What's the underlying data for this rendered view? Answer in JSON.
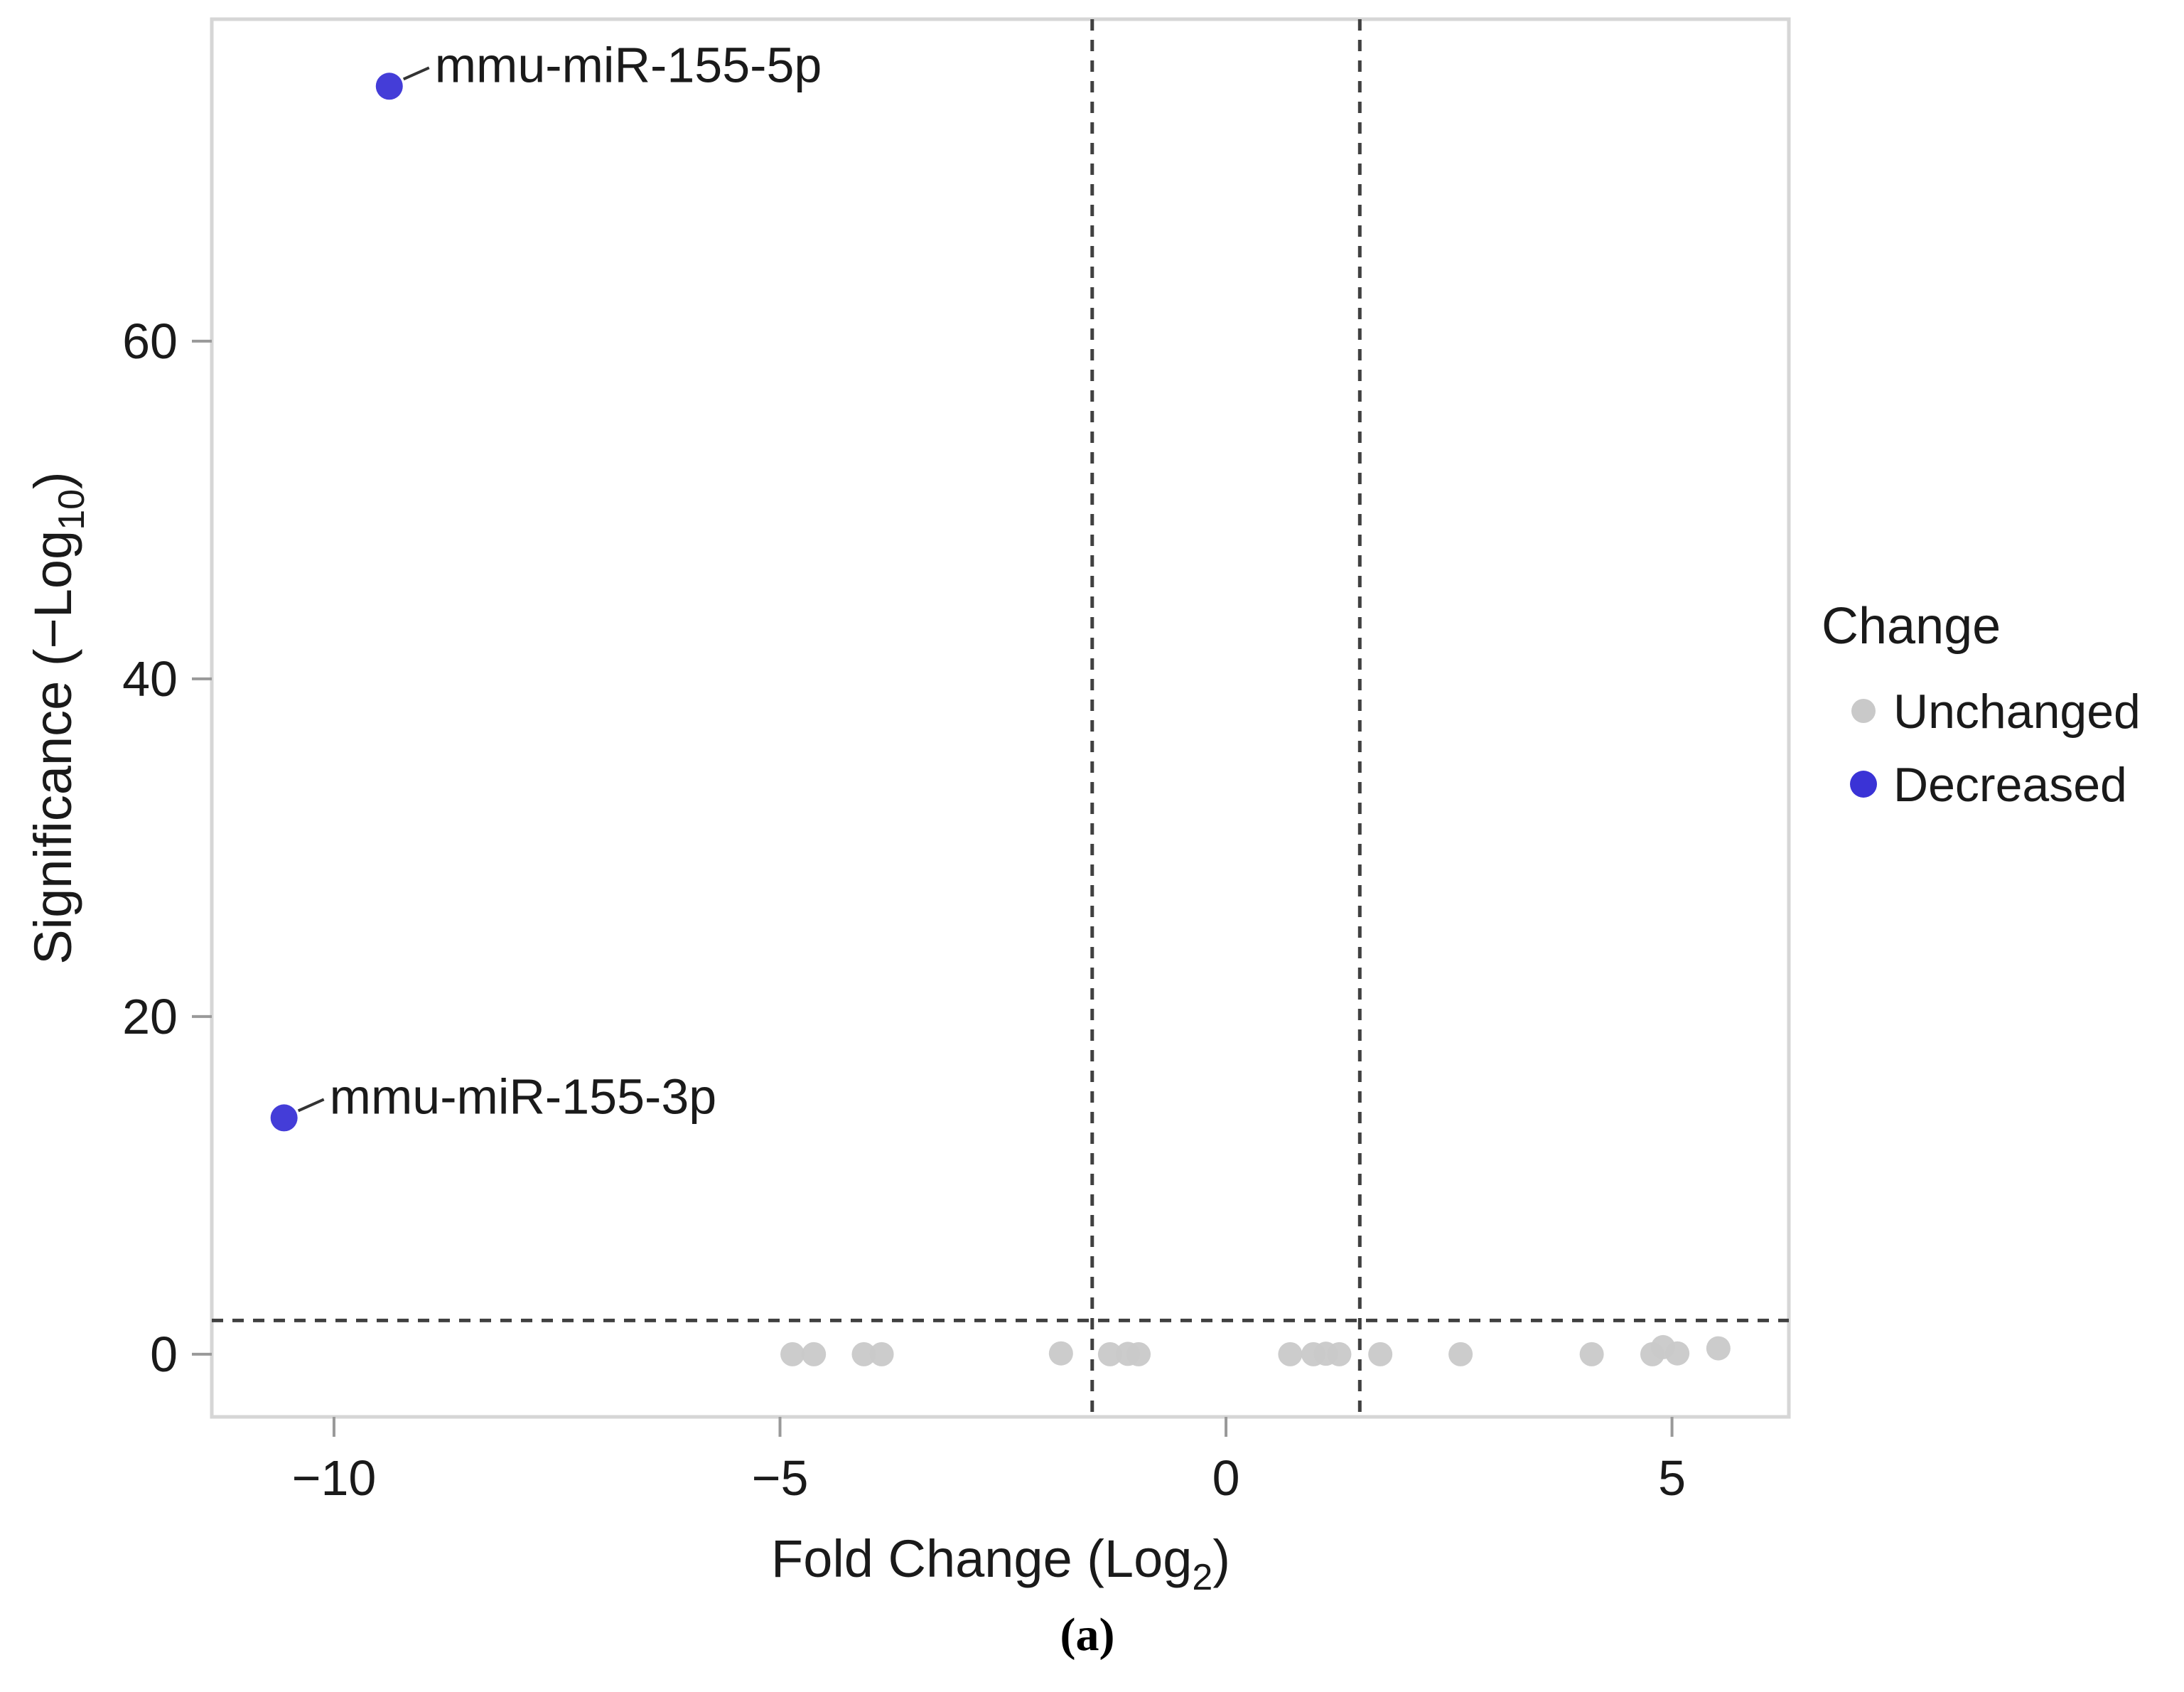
{
  "figure": {
    "caption": "(a)",
    "background_color": "#ffffff",
    "panel_border_color": "#d6d6d6"
  },
  "legend": {
    "title": "Change",
    "entries": [
      {
        "label": "Unchanged",
        "color": "#c9c9c9"
      },
      {
        "label": "Decreased",
        "color": "#3a33d6"
      }
    ]
  },
  "axes": {
    "x": {
      "title_main": "Fold Change (Log",
      "title_sub": "2",
      "title_end": ")",
      "ticks": [
        {
          "v": -10,
          "label": "−10"
        },
        {
          "v": -5,
          "label": "−5"
        },
        {
          "v": 0,
          "label": "0"
        },
        {
          "v": 5,
          "label": "5"
        }
      ]
    },
    "y": {
      "title_main": "Significance (−Log",
      "title_sub": "10",
      "title_end": ")",
      "ticks": [
        {
          "v": 0,
          "label": "0"
        },
        {
          "v": 20,
          "label": "20"
        },
        {
          "v": 40,
          "label": "40"
        },
        {
          "v": 60,
          "label": "60"
        }
      ]
    }
  },
  "chart_data": {
    "type": "scatter",
    "title": "",
    "xlabel": "Fold Change (Log2)",
    "ylabel": "Significance (−Log10)",
    "xlim": [
      -11.37,
      6.31
    ],
    "ylim": [
      -3.71,
      79.07
    ],
    "grid": false,
    "legend_position": "right-center",
    "thresholds": {
      "vlines": [
        -1.5,
        1.5
      ],
      "hline": 2,
      "line_style": "dashed",
      "line_color": "#404040"
    },
    "series": [
      {
        "name": "Unchanged",
        "color": "#c9c9c9",
        "marker_radius": 17,
        "points": [
          {
            "x": -4.86,
            "y": 0
          },
          {
            "x": -4.62,
            "y": 0
          },
          {
            "x": -4.06,
            "y": 0
          },
          {
            "x": -3.86,
            "y": 0
          },
          {
            "x": -1.85,
            "y": 0.05
          },
          {
            "x": -1.3,
            "y": 0
          },
          {
            "x": -1.1,
            "y": 0.02
          },
          {
            "x": -0.98,
            "y": 0
          },
          {
            "x": 0.72,
            "y": 0
          },
          {
            "x": 0.98,
            "y": 0
          },
          {
            "x": 1.12,
            "y": 0.03
          },
          {
            "x": 1.27,
            "y": 0
          },
          {
            "x": 1.73,
            "y": 0
          },
          {
            "x": 2.63,
            "y": 0
          },
          {
            "x": 4.1,
            "y": 0
          },
          {
            "x": 4.78,
            "y": 0
          },
          {
            "x": 4.9,
            "y": 0.42
          },
          {
            "x": 5.06,
            "y": 0.05
          },
          {
            "x": 5.52,
            "y": 0.35
          }
        ]
      },
      {
        "name": "Decreased",
        "color": "#3a33d6",
        "marker_radius": 19,
        "points": [
          {
            "x": -9.38,
            "y": 75.1,
            "label": "mmu-miR-155-5p"
          },
          {
            "x": -10.56,
            "y": 14.0,
            "label": "mmu-miR-155-3p"
          }
        ]
      }
    ]
  }
}
